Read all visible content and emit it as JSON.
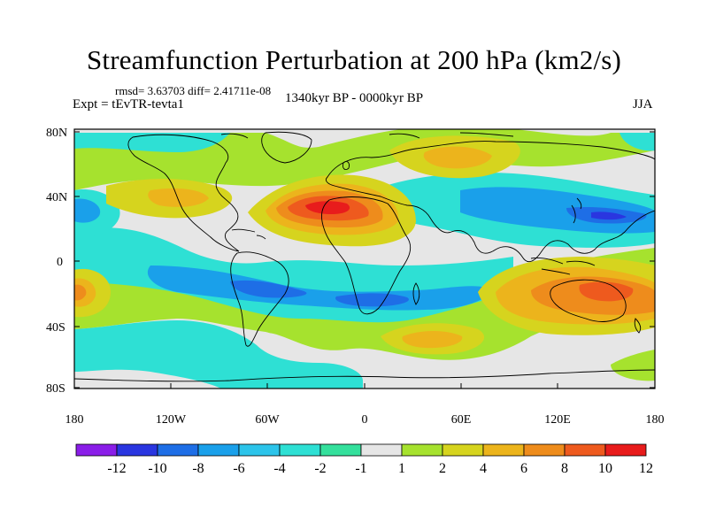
{
  "title": "Streamfunction Perturbation at 200 hPa (km2/s)",
  "stats_line": "rmsd= 3.63703 diff= 2.41711e-08",
  "experiment_label": "Expt = tEvTR-tevta1",
  "time_period": "1340kyr BP - 0000kyr BP",
  "season": "JJA",
  "lat_ticks": [
    "80N",
    "40N",
    "0",
    "40S",
    "80S"
  ],
  "lon_ticks": [
    "180",
    "120W",
    "60W",
    "0",
    "60E",
    "120E",
    "180"
  ],
  "colorbar": {
    "labels": [
      "-12",
      "-10",
      "-8",
      "-6",
      "-4",
      "-2",
      "-1",
      "1",
      "2",
      "4",
      "6",
      "8",
      "10",
      "12"
    ],
    "colors": [
      "#8a1ee8",
      "#2a36e0",
      "#1e6ee6",
      "#1aa0ea",
      "#2cc4ea",
      "#2ee0d4",
      "#34e09c",
      "#e6e6e6",
      "#a6e22e",
      "#d6d41e",
      "#ecb41c",
      "#ee8c1c",
      "#ee5a1e",
      "#e81c1c"
    ]
  },
  "colors": {
    "background_fill": "#e6e6e6",
    "coast": "#000000"
  }
}
